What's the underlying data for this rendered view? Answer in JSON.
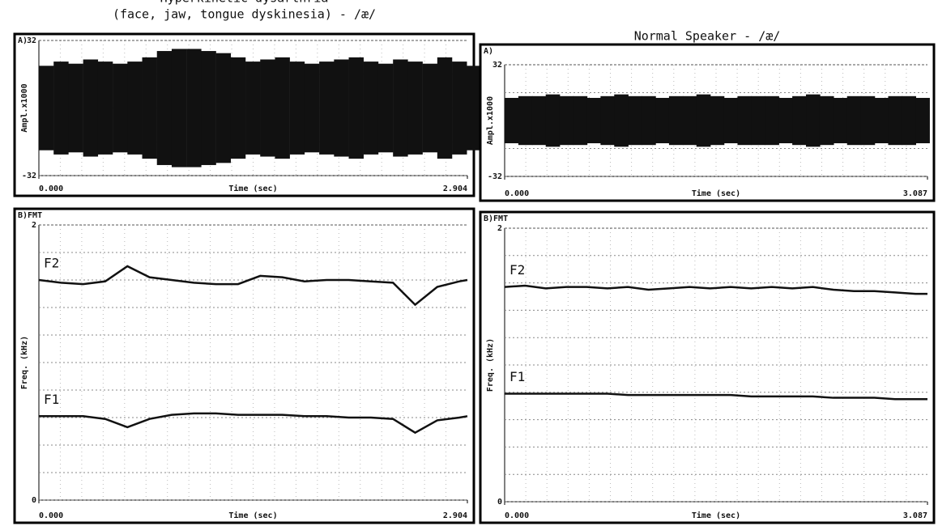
{
  "chart_data": [
    {
      "type": "area",
      "title": [
        "Hyperkinetic dysarthria",
        "(face, jaw, tongue dyskinesia) - /æ/"
      ],
      "panel_label": "A)",
      "xlabel": "Time (sec)",
      "ylabel": "Ampl.x1000",
      "color": "#111111",
      "grid": true,
      "xlim": [
        0,
        2.904
      ],
      "xticks": [
        {
          "value": 0,
          "label": "0.000"
        },
        2.904
      ],
      "ylim": [
        -32,
        32
      ],
      "yticks": [
        -32,
        32
      ],
      "x": [
        0,
        0.1,
        0.2,
        0.3,
        0.4,
        0.5,
        0.6,
        0.7,
        0.8,
        0.9,
        1.0,
        1.1,
        1.2,
        1.3,
        1.4,
        1.5,
        1.6,
        1.7,
        1.8,
        1.9,
        2.0,
        2.1,
        2.2,
        2.3,
        2.4,
        2.5,
        2.6,
        2.7,
        2.8,
        2.9
      ],
      "values": [
        20,
        22,
        21,
        23,
        22,
        21,
        22,
        24,
        27,
        28,
        28,
        27,
        26,
        24,
        22,
        23,
        24,
        22,
        21,
        22,
        23,
        24,
        22,
        21,
        23,
        22,
        21,
        24,
        22,
        20
      ]
    },
    {
      "type": "line",
      "panel_label": "B)FMT",
      "xlabel": "Time (sec)",
      "ylabel": "Freq. (kHz)",
      "grid": true,
      "xlim": [
        0,
        2.904
      ],
      "xticks": [
        {
          "value": 0,
          "label": "0.000"
        },
        2.904
      ],
      "ylim": [
        0,
        2
      ],
      "yticks": [
        0,
        2
      ],
      "x": [
        0,
        0.15,
        0.3,
        0.45,
        0.6,
        0.75,
        0.9,
        1.05,
        1.2,
        1.35,
        1.5,
        1.65,
        1.8,
        1.95,
        2.1,
        2.25,
        2.4,
        2.55,
        2.7,
        2.85,
        2.904
      ],
      "series": [
        {
          "name": "F2",
          "color": "#111111",
          "values": [
            1.6,
            1.58,
            1.57,
            1.59,
            1.7,
            1.62,
            1.6,
            1.58,
            1.57,
            1.57,
            1.63,
            1.62,
            1.59,
            1.6,
            1.6,
            1.59,
            1.58,
            1.42,
            1.55,
            1.59,
            1.6
          ]
        },
        {
          "name": "F1",
          "color": "#111111",
          "values": [
            0.61,
            0.61,
            0.61,
            0.59,
            0.53,
            0.59,
            0.62,
            0.63,
            0.63,
            0.62,
            0.62,
            0.62,
            0.61,
            0.61,
            0.6,
            0.6,
            0.59,
            0.49,
            0.58,
            0.6,
            0.61
          ]
        }
      ]
    },
    {
      "type": "area",
      "title": [
        "Normal Speaker - /æ/"
      ],
      "panel_label": "A)",
      "xlabel": "Time (sec)",
      "ylabel": "Ampl.x1000",
      "color": "#111111",
      "grid": true,
      "xlim": [
        0,
        3.087
      ],
      "xticks": [
        {
          "value": 0,
          "label": "0.000"
        },
        3.087
      ],
      "ylim": [
        -32,
        32
      ],
      "yticks": [
        -32,
        32
      ],
      "x": [
        0,
        0.1,
        0.2,
        0.3,
        0.4,
        0.5,
        0.6,
        0.7,
        0.8,
        0.9,
        1.0,
        1.1,
        1.2,
        1.3,
        1.4,
        1.5,
        1.6,
        1.7,
        1.8,
        1.9,
        2.0,
        2.1,
        2.2,
        2.3,
        2.4,
        2.5,
        2.6,
        2.7,
        2.8,
        2.9,
        3.0
      ],
      "values": [
        13,
        14,
        14,
        15,
        14,
        14,
        13,
        14,
        15,
        14,
        14,
        13,
        14,
        14,
        15,
        14,
        13,
        14,
        14,
        14,
        13,
        14,
        15,
        14,
        13,
        14,
        14,
        13,
        14,
        14,
        13
      ]
    },
    {
      "type": "line",
      "panel_label": "B)FMT",
      "xlabel": "Time (sec)",
      "ylabel": "Freq. (kHz)",
      "grid": true,
      "xlim": [
        0,
        3.087
      ],
      "xticks": [
        {
          "value": 0,
          "label": "0.000"
        },
        3.087
      ],
      "ylim": [
        0,
        2
      ],
      "yticks": [
        0,
        2
      ],
      "x": [
        0,
        0.15,
        0.3,
        0.45,
        0.6,
        0.75,
        0.9,
        1.05,
        1.2,
        1.35,
        1.5,
        1.65,
        1.8,
        1.95,
        2.1,
        2.25,
        2.4,
        2.55,
        2.7,
        2.85,
        3.0,
        3.087
      ],
      "series": [
        {
          "name": "F2",
          "color": "#111111",
          "values": [
            1.57,
            1.58,
            1.56,
            1.57,
            1.57,
            1.56,
            1.57,
            1.55,
            1.56,
            1.57,
            1.56,
            1.57,
            1.56,
            1.57,
            1.56,
            1.57,
            1.55,
            1.54,
            1.54,
            1.53,
            1.52,
            1.52
          ]
        },
        {
          "name": "F1",
          "color": "#111111",
          "values": [
            0.79,
            0.79,
            0.79,
            0.79,
            0.79,
            0.79,
            0.78,
            0.78,
            0.78,
            0.78,
            0.78,
            0.78,
            0.77,
            0.77,
            0.77,
            0.77,
            0.76,
            0.76,
            0.76,
            0.75,
            0.75,
            0.75
          ]
        }
      ]
    }
  ]
}
